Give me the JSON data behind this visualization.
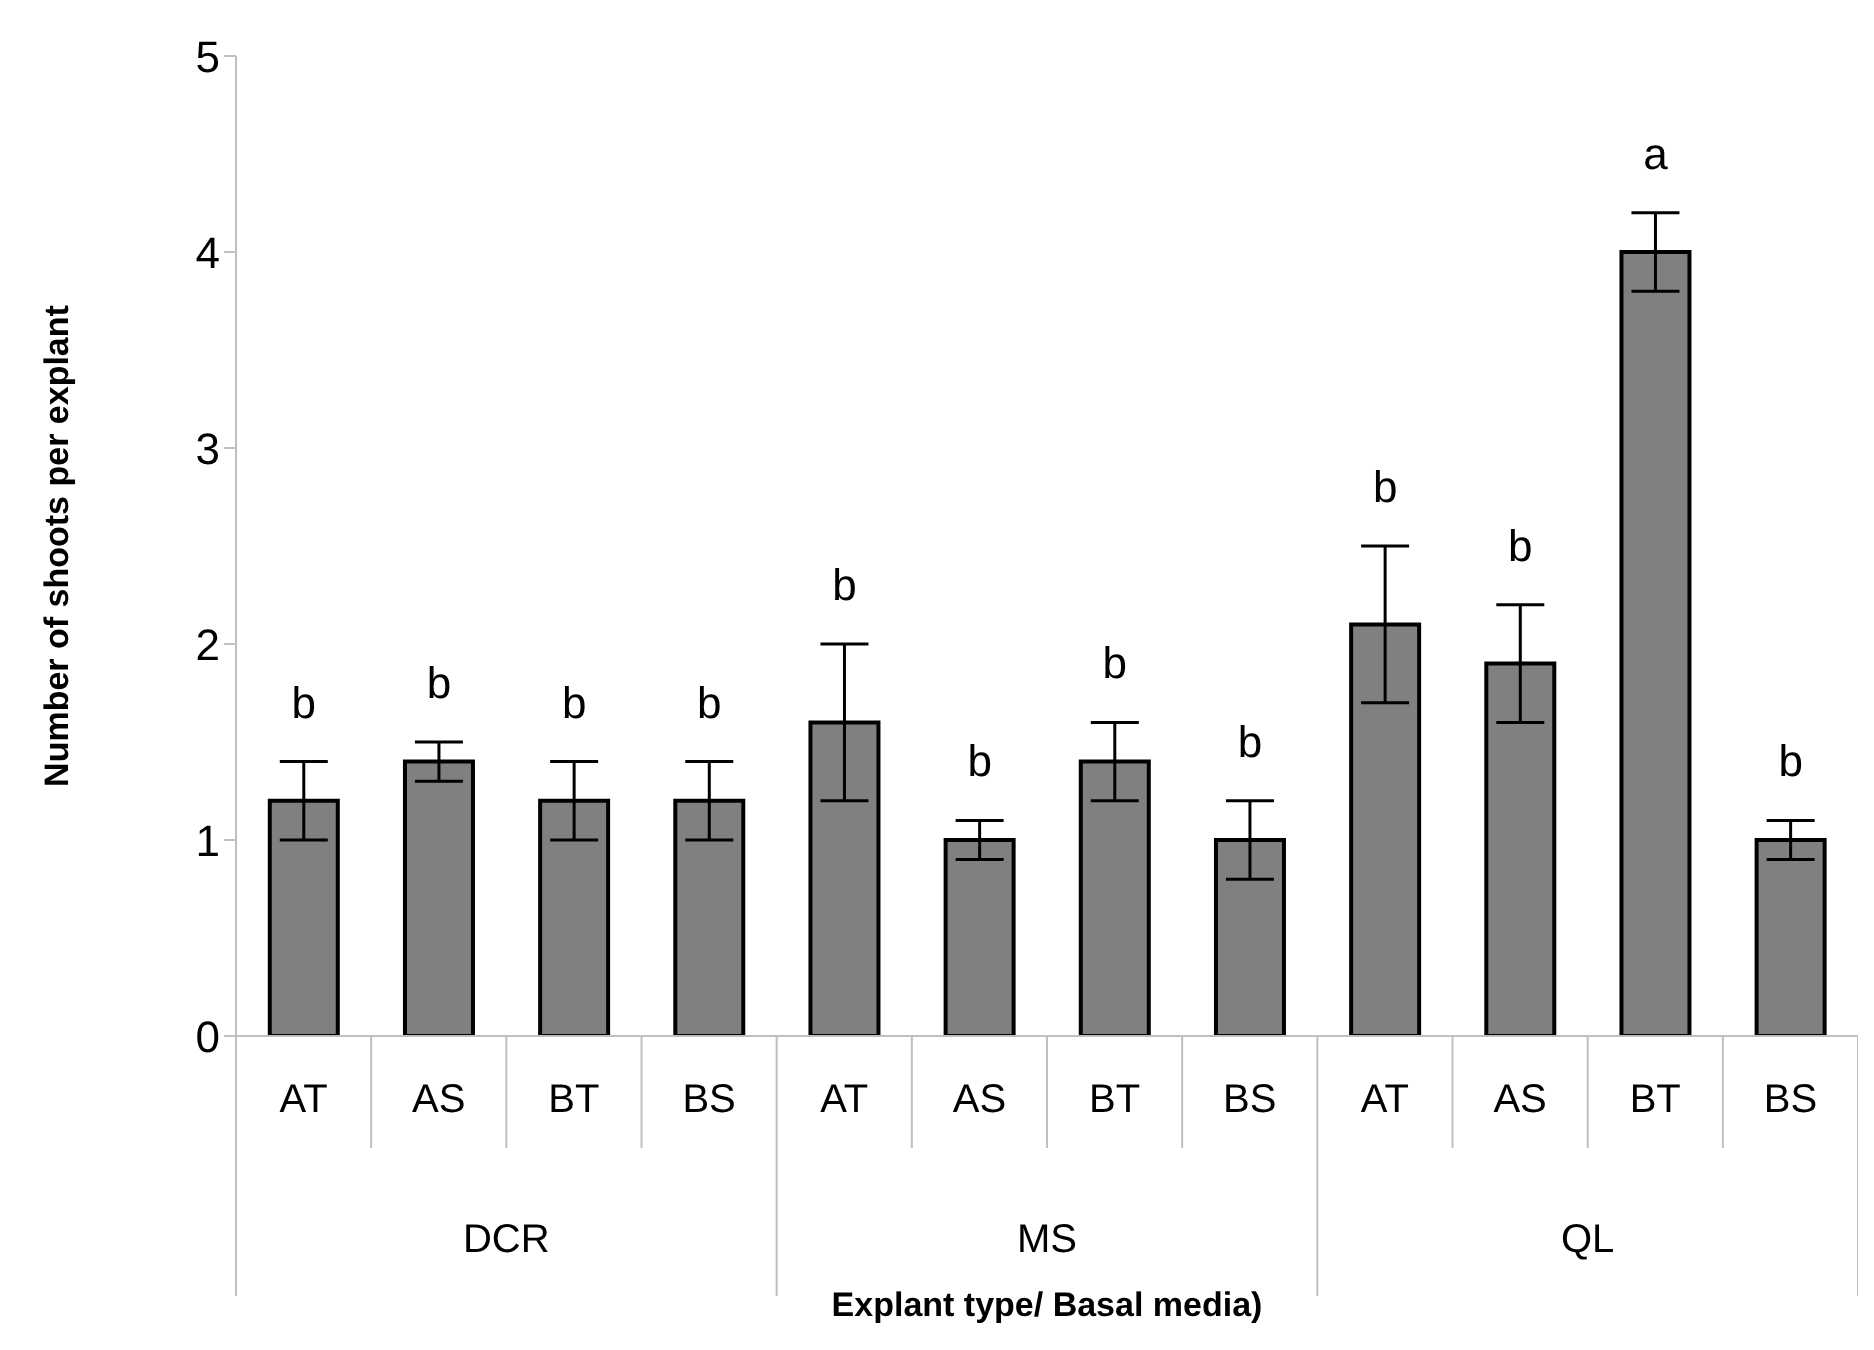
{
  "chart_data": {
    "type": "bar",
    "ylabel": "Number of shoots per explant",
    "xlabel": "Explant type/ Basal media)",
    "categories": [
      "AT",
      "AS",
      "BT",
      "BS",
      "AT",
      "AS",
      "BT",
      "BS",
      "AT",
      "AS",
      "BT",
      "BS"
    ],
    "annotations": [
      "DCR",
      "MS",
      "QL"
    ],
    "values": [
      1.2,
      1.4,
      1.2,
      1.2,
      1.6,
      1.0,
      1.4,
      1.0,
      2.1,
      1.9,
      4.0,
      1.0
    ],
    "errors": [
      0.2,
      0.1,
      0.2,
      0.2,
      0.4,
      0.1,
      0.2,
      0.2,
      0.4,
      0.3,
      0.2,
      0.1
    ],
    "value_labels": [
      "b",
      "b",
      "b",
      "b",
      "b",
      "b",
      "b",
      "b",
      "b",
      "b",
      "a",
      "b"
    ],
    "color": "#808080",
    "ylim": [
      0,
      5
    ],
    "yticks": [
      0,
      1,
      2,
      3,
      4,
      5
    ],
    "grid": false,
    "legend": false
  }
}
